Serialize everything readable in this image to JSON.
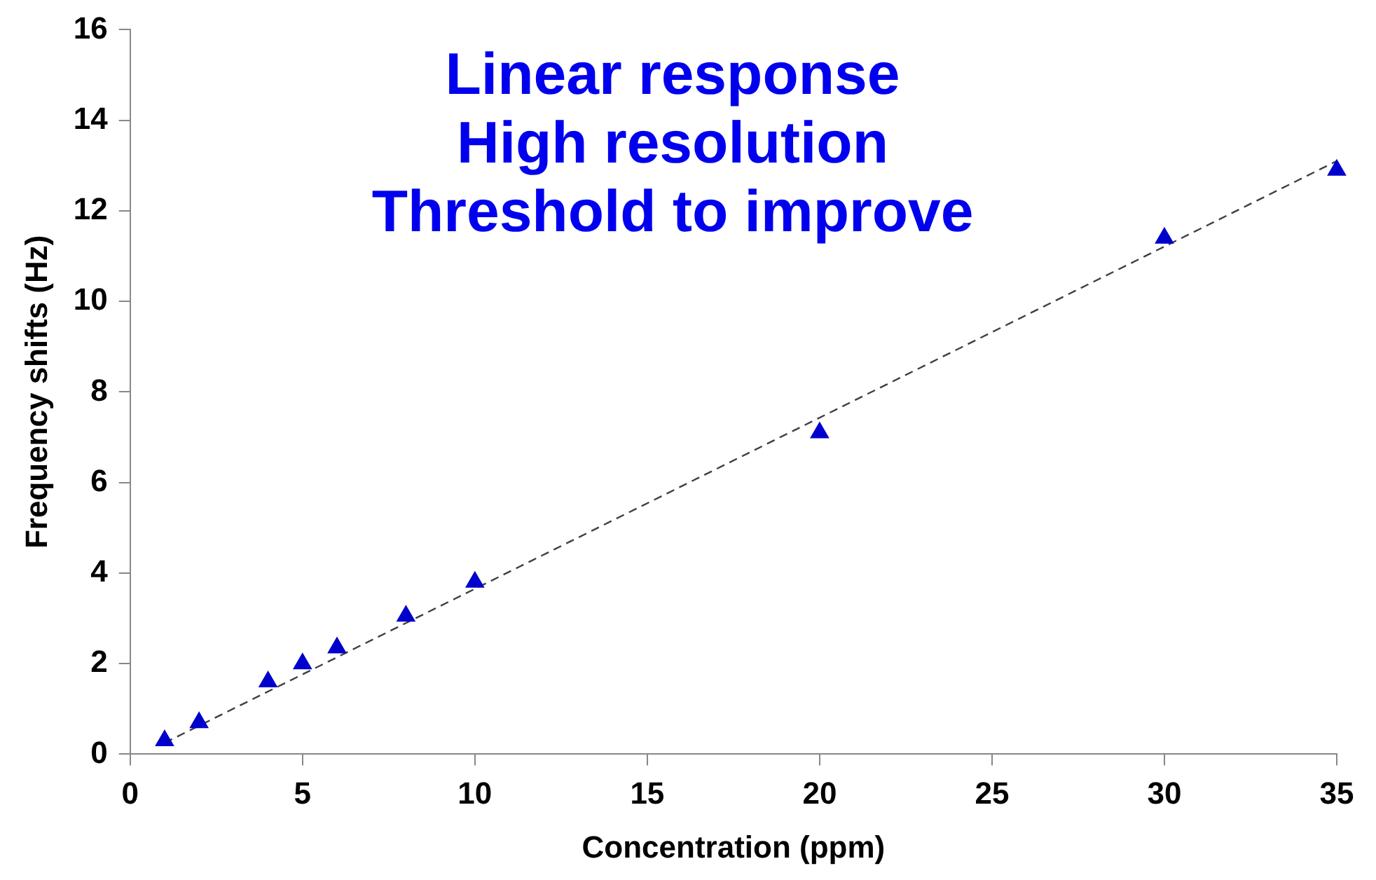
{
  "chart_data": {
    "type": "scatter",
    "xlabel": "Concentration (ppm)",
    "ylabel": "Frequency shifts (Hz)",
    "x": [
      1,
      2,
      4,
      5,
      6,
      8,
      10,
      20,
      30,
      35
    ],
    "series": [
      {
        "color": "#0000cc",
        "marker": "triangle",
        "values": [
          0.3,
          0.7,
          1.6,
          2.0,
          2.35,
          3.05,
          3.8,
          7.1,
          11.4,
          12.9
        ]
      },
      {
        "type": "line",
        "color": "#404040",
        "marker": "none",
        "line_style": "dashed",
        "x": [
          1,
          35
        ],
        "values": [
          0.25,
          13.1
        ]
      }
    ],
    "xlim": [
      0,
      35
    ],
    "xticks": [
      0,
      5,
      10,
      15,
      20,
      25,
      30,
      35
    ],
    "ylim": [
      0,
      16
    ],
    "yticks": [
      0,
      2,
      4,
      6,
      8,
      10,
      12,
      14,
      16
    ],
    "grid": false,
    "legend": false,
    "annotations": [
      "Linear response",
      "High resolution",
      "Threshold to improve"
    ]
  }
}
